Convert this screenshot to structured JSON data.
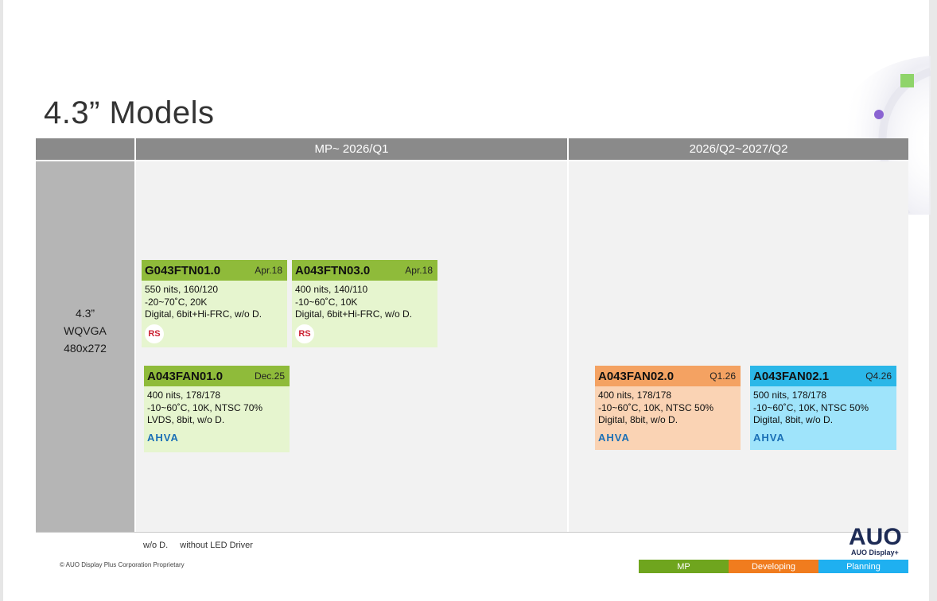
{
  "slide": {
    "title": "4.3” Models"
  },
  "table": {
    "columns": [
      {
        "label": "MP~ 2026/Q1"
      },
      {
        "label": "2026/Q2~2027/Q2"
      }
    ],
    "row": {
      "size": "4.3”",
      "resolution_name": "WQVGA",
      "resolution": "480x272"
    }
  },
  "cards": [
    {
      "name": "G043FTN01.0",
      "date": "Apr.18",
      "specs": [
        "550 nits, 160/120",
        "-20~70˚C, 20K",
        "Digital, 6bit+Hi-FRC, w/o D."
      ],
      "badge": "RS",
      "status_color": "#8fbb3a"
    },
    {
      "name": "A043FTN03.0",
      "date": "Apr.18",
      "specs": [
        "400 nits, 140/110",
        "-10~60˚C, 10K",
        "Digital, 6bit+Hi-FRC, w/o D."
      ],
      "badge": "RS",
      "status_color": "#8fbb3a"
    },
    {
      "name": "A043FAN01.0",
      "date": "Dec.25",
      "specs": [
        "400 nits, 178/178",
        "-10~60˚C, 10K, NTSC 70%",
        "LVDS, 8bit, w/o D."
      ],
      "logo": "AHVA",
      "status_color": "#8fbb3a"
    },
    {
      "name": "A043FAN02.0",
      "date": "Q1.26",
      "specs": [
        "400 nits, 178/178",
        "-10~60˚C, 10K, NTSC 50%",
        "Digital, 8bit, w/o D."
      ],
      "logo": "AHVA",
      "status_color": "#f4a262"
    },
    {
      "name": "A043FAN02.1",
      "date": "Q4.26",
      "specs": [
        "500 nits, 178/178",
        "-10~60˚C, 10K, NTSC 50%",
        "Digital, 8bit, w/o D."
      ],
      "logo": "AHVA",
      "status_color": "#2bb7e8"
    }
  ],
  "footnote": {
    "abbr": "w/o D.",
    "meaning": "without LED Driver"
  },
  "copyright": "© AUO Display Plus Corporation Proprietary",
  "brand": {
    "logo_text": "AUO",
    "sub": "AUO Display+"
  },
  "legend": [
    {
      "label": "MP",
      "color": "#6fa51e"
    },
    {
      "label": "Developing",
      "color": "#f07c1e"
    },
    {
      "label": "Planning",
      "color": "#1fb0f0"
    }
  ]
}
